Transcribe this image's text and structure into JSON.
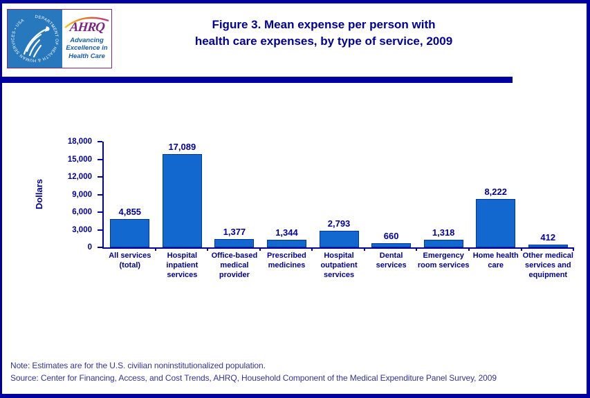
{
  "page": {
    "colors": {
      "frame_navy": "#0000A0",
      "title_navy": "#000099",
      "bar_blue": "#1268CE",
      "bar_border": "#0033A0",
      "note_blue": "#333399",
      "hhs_logo_blue": "#2878BE",
      "ahrq_purple": "#7B2482",
      "tagline_blue": "#1A5DAE"
    }
  },
  "header": {
    "title": "Figure 3. Mean expense per person with\nhealth care expenses, by type of service, 2009",
    "logo": {
      "hhs_circle_text": "DEPARTMENT OF HEALTH & HUMAN SERVICES • USA",
      "ahrq_acronym": "AHRQ",
      "tagline": "Advancing\nExcellence in\nHealth Care"
    }
  },
  "chart_data": {
    "type": "bar",
    "title": "Figure 3. Mean expense per person with health care expenses, by type of service, 2009",
    "categories": [
      "All services\n(total)",
      "Hospital\ninpatient\nservices",
      "Office-based\nmedical\nprovider",
      "Prescribed\nmedicines",
      "Hospital\noutpatient\nservices",
      "Dental\nservices",
      "Emergency\nroom services",
      "Home health\ncare",
      "Other medical\nservices and\nequipment"
    ],
    "values": [
      4855,
      17089,
      1377,
      1344,
      2793,
      660,
      1318,
      8222,
      412
    ],
    "value_labels": [
      "4,855",
      "17,089",
      "1,377",
      "1,344",
      "2,793",
      "660",
      "1,318",
      "8,222",
      "412"
    ],
    "xlabel": "",
    "ylabel": "Dollars",
    "ylim": [
      0,
      18000
    ],
    "ytick_step": 3000,
    "ytick_labels_top_to_bottom": [
      "18,000",
      "15,000",
      "12,000",
      "9,000",
      "6,000",
      "3,000",
      "0"
    ],
    "grid": false,
    "legend": false
  },
  "footer": {
    "note": "Note: Estimates are for the U.S. civilian noninstitutionalized population.",
    "source": "Source: Center for Financing, Access, and Cost Trends, AHRQ, Household Component of the Medical Expenditure Panel Survey,  2009"
  }
}
